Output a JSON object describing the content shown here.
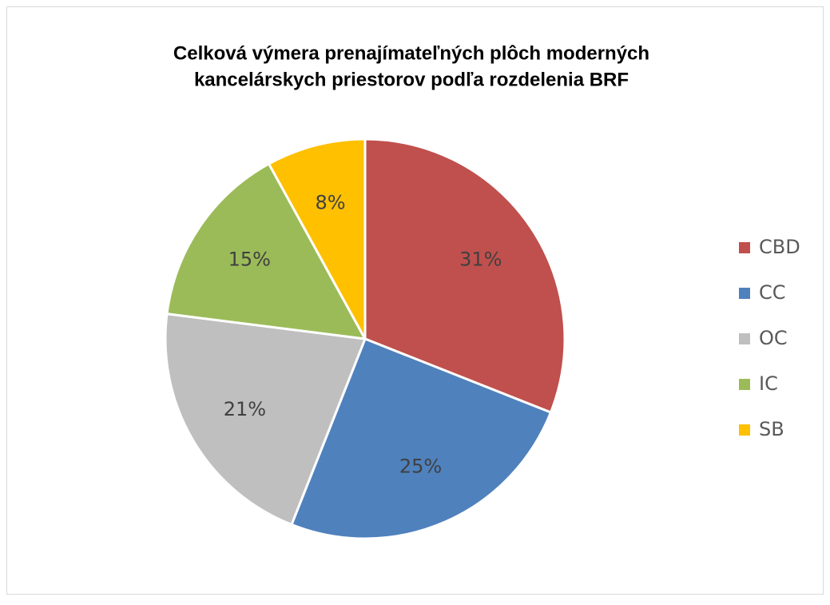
{
  "chart_data": {
    "type": "pie",
    "title": [
      "Celková výmera prenajímateľných plôch moderných",
      "kancelárskych priestorov podľa rozdelenia BRF"
    ],
    "categories": [
      "CBD",
      "CC",
      "OC",
      "IC",
      "SB"
    ],
    "values": [
      31,
      25,
      21,
      15,
      8
    ],
    "value_labels": [
      "31%",
      "25%",
      "21%",
      "15%",
      "8%"
    ],
    "colors": [
      "#c0504d",
      "#4f81bd",
      "#bfbfbf",
      "#9bbb59",
      "#ffc000"
    ],
    "legend": "right"
  }
}
